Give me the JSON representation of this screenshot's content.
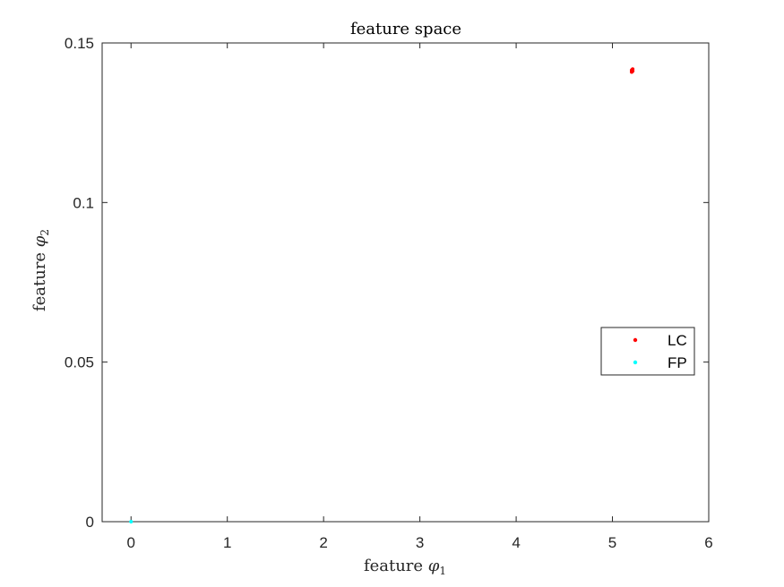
{
  "chart_data": {
    "type": "scatter",
    "title": "feature space",
    "xlabel": {
      "prefix": "feature ",
      "symbol": "φ",
      "subscript": "1"
    },
    "ylabel": {
      "prefix": "feature ",
      "symbol": "φ",
      "subscript": "2"
    },
    "xlim": [
      -0.3,
      6
    ],
    "ylim": [
      0,
      0.15
    ],
    "xticks": [
      0,
      1,
      2,
      3,
      4,
      5,
      6
    ],
    "xtick_labels": [
      "0",
      "1",
      "2",
      "3",
      "4",
      "5",
      "6"
    ],
    "yticks": [
      0,
      0.05,
      0.1,
      0.15
    ],
    "ytick_labels": [
      "0",
      "0.05",
      "0.1",
      "0.15"
    ],
    "grid": false,
    "legend_position": "right",
    "series": [
      {
        "name": "LC",
        "color": "#ff0000",
        "points": [
          [
            5.2,
            0.1409
          ],
          [
            5.21,
            0.1412
          ],
          [
            5.2,
            0.1415
          ],
          [
            5.21,
            0.1418
          ],
          [
            5.2,
            0.1411
          ]
        ]
      },
      {
        "name": "FP",
        "color": "#00ffff",
        "points": [
          [
            0,
            0
          ]
        ]
      }
    ]
  }
}
